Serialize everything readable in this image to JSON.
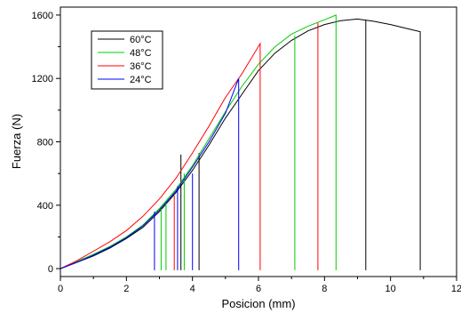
{
  "chart_data": {
    "type": "line",
    "title": "",
    "xlabel": "Posicion (mm)",
    "ylabel": "Fuerza (N)",
    "xlim": [
      0,
      12
    ],
    "ylim": [
      -50,
      1650
    ],
    "x_ticks": [
      0,
      2,
      4,
      6,
      8,
      10,
      12
    ],
    "y_ticks": [
      0,
      400,
      800,
      1200,
      1600
    ],
    "x_tick_labels": [
      "0",
      "2",
      "4",
      "6",
      "8",
      "10",
      "12"
    ],
    "y_tick_labels": [
      "0",
      "400",
      "800",
      "1200",
      "1600"
    ],
    "grid": false,
    "legend_position": "top-left",
    "series": [
      {
        "name": "60°C",
        "color": "#000000",
        "lines": [
          [
            [
              0,
              0
            ],
            [
              0.5,
              40
            ],
            [
              1,
              80
            ],
            [
              1.5,
              130
            ],
            [
              2,
              190
            ],
            [
              2.5,
              260
            ],
            [
              3,
              360
            ],
            [
              3.5,
              480
            ],
            [
              4,
              620
            ],
            [
              4.5,
              780
            ],
            [
              5,
              950
            ],
            [
              5.5,
              1100
            ],
            [
              6,
              1250
            ],
            [
              6.5,
              1360
            ],
            [
              7,
              1440
            ],
            [
              7.5,
              1500
            ],
            [
              8,
              1540
            ],
            [
              8.5,
              1565
            ],
            [
              9,
              1575
            ],
            [
              9.5,
              1560
            ],
            [
              10,
              1540
            ],
            [
              10.5,
              1515
            ],
            [
              10.9,
              1495
            ],
            [
              10.9,
              -10
            ]
          ],
          [
            [
              3.65,
              720
            ],
            [
              3.65,
              -10
            ]
          ],
          [
            [
              4.2,
              730
            ],
            [
              4.2,
              -10
            ]
          ],
          [
            [
              9.25,
              1570
            ],
            [
              9.25,
              -10
            ]
          ]
        ]
      },
      {
        "name": "48°C",
        "color": "#00cc00",
        "lines": [
          [
            [
              0,
              0
            ],
            [
              0.5,
              45
            ],
            [
              1,
              90
            ],
            [
              1.5,
              140
            ],
            [
              2,
              200
            ],
            [
              2.5,
              275
            ],
            [
              3,
              380
            ],
            [
              3.5,
              500
            ],
            [
              4,
              650
            ],
            [
              4.5,
              820
            ],
            [
              5,
              990
            ],
            [
              5.5,
              1150
            ],
            [
              6,
              1290
            ],
            [
              6.5,
              1400
            ],
            [
              7,
              1480
            ],
            [
              7.5,
              1530
            ],
            [
              8,
              1570
            ],
            [
              8.35,
              1600
            ],
            [
              8.35,
              -10
            ]
          ],
          [
            [
              3.05,
              390
            ],
            [
              3.05,
              -10
            ]
          ],
          [
            [
              3.2,
              420
            ],
            [
              3.2,
              -10
            ]
          ],
          [
            [
              3.75,
              600
            ],
            [
              3.75,
              -10
            ]
          ],
          [
            [
              7.1,
              1470
            ],
            [
              7.1,
              -10
            ]
          ]
        ]
      },
      {
        "name": "36°C",
        "color": "#ff0000",
        "lines": [
          [
            [
              0,
              0
            ],
            [
              0.5,
              50
            ],
            [
              1,
              110
            ],
            [
              1.5,
              170
            ],
            [
              2,
              240
            ],
            [
              2.5,
              330
            ],
            [
              3,
              440
            ],
            [
              3.5,
              570
            ],
            [
              4,
              730
            ],
            [
              4.5,
              900
            ],
            [
              5,
              1080
            ],
            [
              5.5,
              1230
            ],
            [
              6.05,
              1420
            ],
            [
              6.05,
              -10
            ]
          ],
          [
            [
              3.45,
              460
            ],
            [
              3.45,
              -10
            ]
          ],
          [
            [
              7.8,
              1550
            ],
            [
              7.8,
              -10
            ]
          ]
        ]
      },
      {
        "name": "24°C",
        "color": "#0000ff",
        "lines": [
          [
            [
              0,
              0
            ],
            [
              0.5,
              40
            ],
            [
              1,
              85
            ],
            [
              1.5,
              135
            ],
            [
              2,
              195
            ],
            [
              2.5,
              270
            ],
            [
              3,
              370
            ],
            [
              3.5,
              490
            ],
            [
              4,
              640
            ],
            [
              4.5,
              800
            ],
            [
              5,
              980
            ],
            [
              5.4,
              1200
            ],
            [
              5.4,
              -10
            ]
          ],
          [
            [
              2.85,
              360
            ],
            [
              2.85,
              -10
            ]
          ],
          [
            [
              3.55,
              520
            ],
            [
              3.55,
              -10
            ]
          ],
          [
            [
              4.0,
              600
            ],
            [
              4.0,
              -10
            ]
          ]
        ]
      }
    ]
  }
}
